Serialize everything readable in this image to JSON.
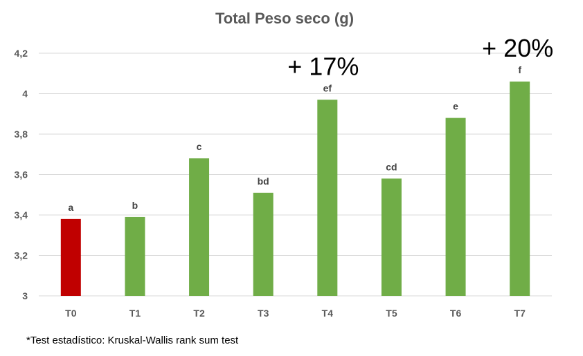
{
  "chart_data": {
    "type": "bar",
    "title": "Total Peso seco (g)",
    "xlabel": "",
    "ylabel": "",
    "categories": [
      "T0",
      "T1",
      "T2",
      "T3",
      "T4",
      "T5",
      "T6",
      "T7"
    ],
    "values": [
      3.38,
      3.39,
      3.68,
      3.51,
      3.97,
      3.58,
      3.88,
      4.06
    ],
    "data_labels": [
      "a",
      "b",
      "c",
      "bd",
      "ef",
      "cd",
      "e",
      "f"
    ],
    "bar_colors": [
      "#C00000",
      "#70AD47",
      "#70AD47",
      "#70AD47",
      "#70AD47",
      "#70AD47",
      "#70AD47",
      "#70AD47"
    ],
    "ylim": [
      3,
      4.2
    ],
    "yticks": [
      3,
      3.2,
      3.4,
      3.6,
      3.8,
      4,
      4.2
    ],
    "ytick_labels": [
      "3",
      "3,2",
      "3,4",
      "3,6",
      "3,8",
      "4",
      "4,2"
    ],
    "grid": true,
    "legend": "none",
    "annotations": [
      {
        "text": "+ 17%",
        "category": "T4"
      },
      {
        "text": "+ 20%",
        "category": "T7"
      }
    ]
  },
  "footnote": "*Test estadístico: Kruskal-Wallis rank sum test"
}
